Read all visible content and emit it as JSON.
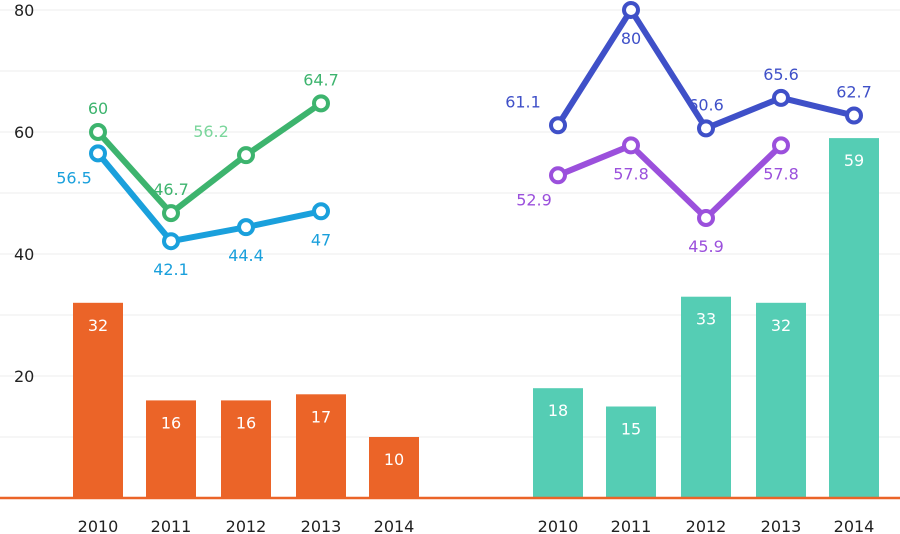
{
  "chart_data": {
    "type": "bar",
    "ylim": [
      0,
      80
    ],
    "yticks": [
      20,
      40,
      60,
      80
    ],
    "grid": true,
    "legend": "none",
    "panels": [
      {
        "categories": [
          "2010",
          "2011",
          "2012",
          "2013",
          "2014"
        ],
        "bars": {
          "values": [
            32,
            16,
            16,
            17,
            10
          ],
          "labels": [
            "32",
            "16",
            "16",
            "17",
            "10"
          ],
          "color": "#EB6428"
        },
        "lines": [
          {
            "values": [
              60,
              46.7,
              56.2,
              64.7
            ],
            "labels": [
              "60",
              "46.7",
              "56.2",
              "64.7"
            ],
            "label_pos": [
              "above",
              "above",
              "above-left",
              "above"
            ],
            "label_colors": [
              "#3DB46E",
              "#3DB46E",
              "#7BD69C",
              "#3DB46E"
            ],
            "color": "#3DB46E"
          },
          {
            "values": [
              56.5,
              42.1,
              44.4,
              47
            ],
            "labels": [
              "56.5",
              "42.1",
              "44.4",
              "47"
            ],
            "label_pos": [
              "below-left",
              "below",
              "below",
              "below"
            ],
            "label_colors": [
              "#1AA0DC",
              "#1AA0DC",
              "#1AA0DC",
              "#1AA0DC"
            ],
            "color": "#1AA0DC"
          }
        ]
      },
      {
        "categories": [
          "2010",
          "2011",
          "2012",
          "2013",
          "2014"
        ],
        "bars": {
          "values": [
            18,
            15,
            33,
            32,
            59
          ],
          "labels": [
            "18",
            "15",
            "33",
            "32",
            "59"
          ],
          "color": "#55CDB4"
        },
        "lines": [
          {
            "values": [
              61.1,
              80,
              60.6,
              65.6,
              62.7
            ],
            "labels": [
              "61.1",
              "80",
              "60.6",
              "65.6",
              "62.7"
            ],
            "label_pos": [
              "above-left",
              "below",
              "above",
              "above",
              "above"
            ],
            "label_colors": [
              "#3F50C8",
              "#3F50C8",
              "#3F50C8",
              "#3F50C8",
              "#3F50C8"
            ],
            "color": "#3F50C8"
          },
          {
            "values": [
              52.9,
              57.8,
              45.9,
              57.8
            ],
            "labels": [
              "52.9",
              "57.8",
              "45.9",
              "57.8"
            ],
            "label_pos": [
              "below-left",
              "below",
              "below",
              "below"
            ],
            "label_colors": [
              "#9B50DC",
              "#9B50DC",
              "#9B50DC",
              "#9B50DC"
            ],
            "color": "#9B50DC"
          }
        ]
      }
    ]
  }
}
